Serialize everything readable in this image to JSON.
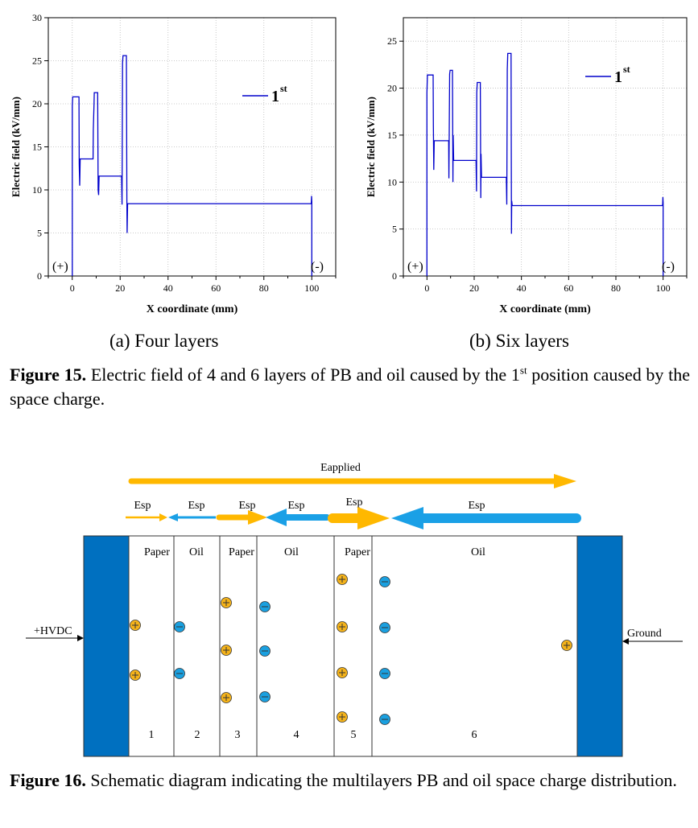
{
  "charts_block": {
    "chart_data": [
      {
        "type": "line",
        "title": "",
        "xlabel": "X coordinate (mm)",
        "ylabel": "Electric field (kV/mm)",
        "xlim": [
          -10,
          110
        ],
        "ylim": [
          0,
          30
        ],
        "xticks": [
          "0",
          "20",
          "40",
          "60",
          "80",
          "100"
        ],
        "yticks": [
          "0",
          "5",
          "10",
          "15",
          "20",
          "25",
          "30"
        ],
        "legend": {
          "label": "1",
          "sup": "st",
          "placement": "top-right"
        },
        "annotations": {
          "left": "(+)",
          "right": "(-)"
        },
        "grid": true,
        "series": [
          {
            "name": "1st",
            "color": "#0000cc",
            "x": [
              0,
              0,
              0.2,
              0.4,
              2.8,
              2.9,
              3.1,
              3.3,
              8.7,
              8.8,
              9.1,
              9.2,
              10.6,
              10.8,
              11.0,
              11.2,
              20.6,
              20.8,
              21.0,
              21.2,
              22.6,
              22.8,
              22.9,
              23.1,
              99.7,
              99.8,
              99.9,
              100,
              100
            ],
            "y": [
              0,
              19.8,
              20.8,
              20.8,
              20.8,
              13.0,
              10.5,
              13.6,
              13.6,
              17.0,
              20.0,
              21.3,
              21.3,
              10.0,
              9.4,
              11.6,
              11.6,
              8.3,
              24.7,
              25.6,
              25.6,
              8.7,
              5.0,
              8.4,
              8.4,
              8.5,
              9.3,
              8.6,
              0
            ]
          }
        ]
      },
      {
        "type": "line",
        "title": "",
        "xlabel": "X coordinate (mm)",
        "ylabel": "Electric field (kV/mm)",
        "xlim": [
          -10,
          110
        ],
        "ylim": [
          0,
          27.5
        ],
        "xticks": [
          "0",
          "20",
          "40",
          "60",
          "80",
          "100"
        ],
        "yticks": [
          "0",
          "5",
          "10",
          "15",
          "20",
          "25"
        ],
        "legend": {
          "label": "1",
          "sup": "st",
          "placement": "top-right"
        },
        "annotations": {
          "left": "(+)",
          "right": "(-)"
        },
        "grid": true,
        "series": [
          {
            "name": "1st",
            "color": "#0000cc",
            "x": [
              0,
              0,
              0.2,
              0.4,
              2.6,
              2.7,
              2.9,
              3.1,
              9.2,
              9.3,
              9.6,
              9.8,
              10.8,
              11.0,
              11.1,
              11.3,
              20.8,
              21.0,
              21.1,
              21.3,
              22.6,
              22.8,
              22.9,
              23.1,
              33.6,
              33.8,
              34.0,
              34.2,
              35.6,
              35.8,
              35.9,
              36.1,
              99.6,
              99.8,
              99.9,
              100,
              100
            ],
            "y": [
              0,
              19.5,
              21.4,
              21.4,
              21.4,
              16.0,
              11.3,
              14.4,
              14.4,
              10.4,
              21.5,
              21.9,
              21.9,
              10.0,
              15.0,
              12.3,
              12.3,
              9.0,
              19.5,
              20.6,
              20.6,
              8.3,
              13.0,
              10.5,
              10.5,
              7.6,
              22.0,
              23.7,
              23.7,
              4.5,
              8.0,
              7.5,
              7.5,
              7.6,
              8.4,
              7.8,
              0
            ]
          }
        ]
      }
    ]
  },
  "figure15": {
    "sub_a": "(a) Four layers",
    "sub_b": "(b) Six layers",
    "label": "Figure 15.",
    "text_1": " Electric field of 4 and 6 layers of PB and oil caused by the 1",
    "text_sup": "st",
    "text_2": " position caused by the space charge."
  },
  "figure16": {
    "eapplied": "Eapplied",
    "esp": [
      "Esp",
      "Esp",
      "Esp",
      "Esp",
      "Esp",
      "Esp"
    ],
    "layers": [
      "Paper",
      "Oil",
      "Paper",
      "Oil",
      "Paper",
      "Oil"
    ],
    "numbers": [
      "1",
      "2",
      "3",
      "4",
      "5",
      "6"
    ],
    "hvdc": "+HVDC",
    "ground": "Ground",
    "colors": {
      "electrode": "#0070c0",
      "positive": "#f5b31a",
      "negative": "#1aa0e0",
      "arrow_yellow": "#ffb800",
      "arrow_blue": "#1aa0e6"
    },
    "label": "Figure 16.",
    "text": " Schematic diagram indicating the multilayers PB and oil space charge distribution."
  }
}
